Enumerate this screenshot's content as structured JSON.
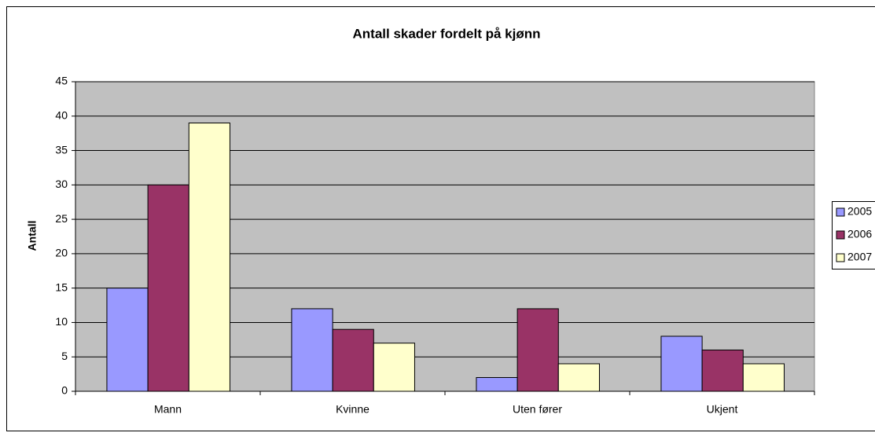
{
  "chart_data": {
    "type": "bar",
    "title": "Antall skader fordelt på kjønn",
    "ylabel": "Antall",
    "categories": [
      "Mann",
      "Kvinne",
      "Uten fører",
      "Ukjent"
    ],
    "series": [
      {
        "name": "2005",
        "color": "#9999ff",
        "values": [
          15,
          12,
          2,
          8
        ]
      },
      {
        "name": "2006",
        "color": "#993366",
        "values": [
          30,
          9,
          12,
          6
        ]
      },
      {
        "name": "2007",
        "color": "#ffffcc",
        "values": [
          39,
          7,
          4,
          4
        ]
      }
    ],
    "ylim": [
      0,
      45
    ],
    "yticks": [
      0,
      5,
      10,
      15,
      20,
      25,
      30,
      35,
      40,
      45
    ],
    "grid": true,
    "legend": "right"
  }
}
